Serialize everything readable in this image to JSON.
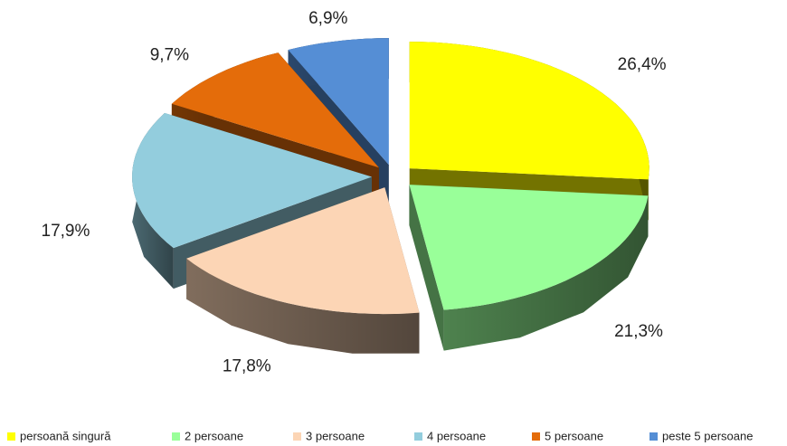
{
  "chart_data": {
    "type": "pie",
    "categories": [
      "persoană singură",
      "2 persoane",
      "3 persoane",
      "4 persoane",
      "5 persoane",
      "peste 5 persoane"
    ],
    "values": [
      26.4,
      21.3,
      17.8,
      17.9,
      9.7,
      6.9
    ],
    "value_labels": [
      "26,4%",
      "21,3%",
      "17,8%",
      "17,9%",
      "9,7%",
      "6,9%"
    ],
    "colors": [
      "#ffff00",
      "#99ff99",
      "#fcd5b5",
      "#93cddd",
      "#e46c0a",
      "#558ed5"
    ],
    "legend": "bottom"
  }
}
